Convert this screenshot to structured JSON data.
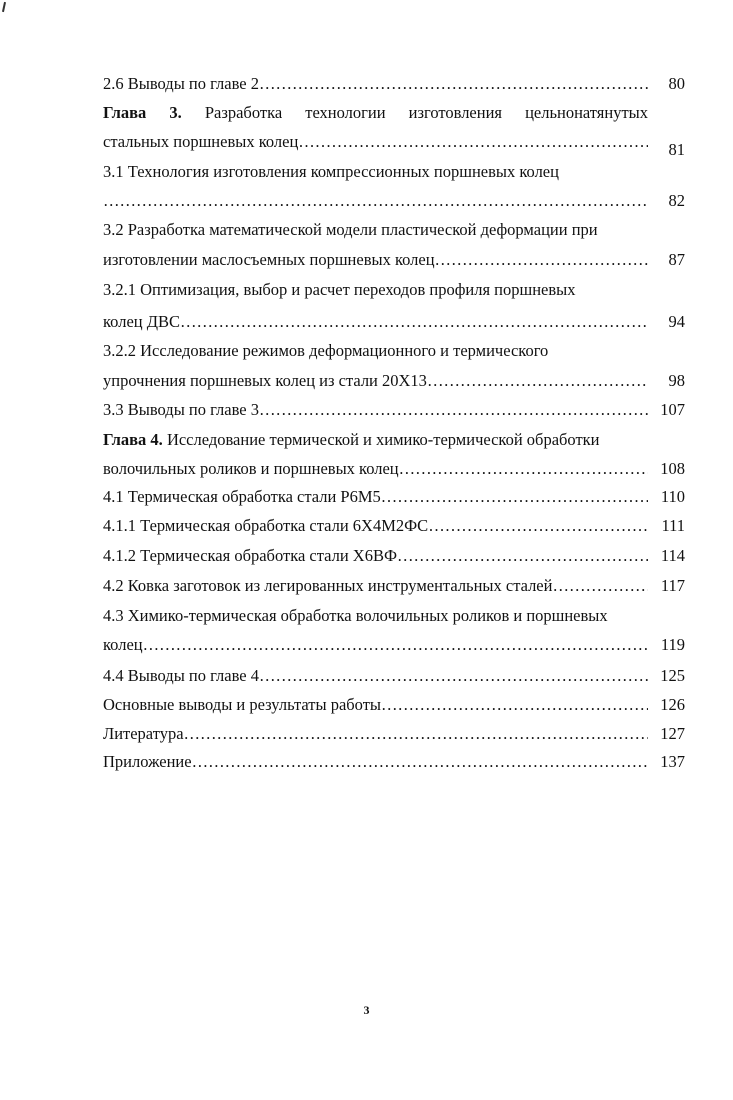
{
  "toc": {
    "lines": [
      {
        "text": "2.6 Выводы по главе 2",
        "leader": true,
        "page": "80"
      },
      {
        "bold": "Глава 3.",
        "text": " Разработка технологии изготовления цельнонатянутых",
        "justify": true
      },
      {
        "text": "стальных поршневых колец",
        "leader": true,
        "page": "81"
      },
      {
        "text": "3.1 Технология изготовления компрессионных поршневых колец"
      },
      {
        "text": "",
        "leader": true,
        "page": "82"
      },
      {
        "text": "3.2 Разработка математической модели пластической деформации при"
      },
      {
        "text": "изготовлении маслосъемных поршневых колец",
        "leader": true,
        "page": "87"
      },
      {
        "text": "3.2.1 Оптимизация, выбор  и расчет переходов профиля поршневых"
      },
      {
        "text": "колец ДВС",
        "leader": true,
        "page": "94"
      },
      {
        "text": "3.2.2 Исследование режимов деформационного и термического"
      },
      {
        "text": "упрочнения  поршневых колец из стали 20Х13",
        "leader": true,
        "page": "98"
      },
      {
        "text": "3.3 Выводы по главе 3",
        "leader": true,
        "page": "107"
      },
      {
        "bold": "Глава 4.",
        "text": " Исследование термической  и химико-термической обработки"
      },
      {
        "text": "волочильных роликов и поршневых колец",
        "leader": true,
        "page": "108"
      },
      {
        "text": "4.1 Термическая  обработка стали Р6М5",
        "leader": true,
        "page": "110"
      },
      {
        "text": "4.1.1 Термическая  обработка стали 6Х4М2ФС",
        "leader": true,
        "page": "111"
      },
      {
        "text": "4.1.2 Термическая  обработка стали Х6ВФ ",
        "leader": true,
        "page": "114"
      },
      {
        "text": "4.2 Ковка заготовок из легированных инструментальных сталей",
        "leader": true,
        "page": "117"
      },
      {
        "text": "4.3 Химико-термическая обработка волочильных роликов и поршневых"
      },
      {
        "text": "колец",
        "leader": true,
        "page": "119"
      },
      {
        "text": "4.4 Выводы по главе 4",
        "leader": true,
        "page": "125"
      },
      {
        "text": "Основные выводы и результаты работы",
        "leader": true,
        "page": "126"
      },
      {
        "text": "Литература",
        "leader": true,
        "page": "127"
      },
      {
        "text": "Приложение",
        "leader": true,
        "page": "137"
      }
    ]
  },
  "footer": {
    "page_number": "3"
  }
}
